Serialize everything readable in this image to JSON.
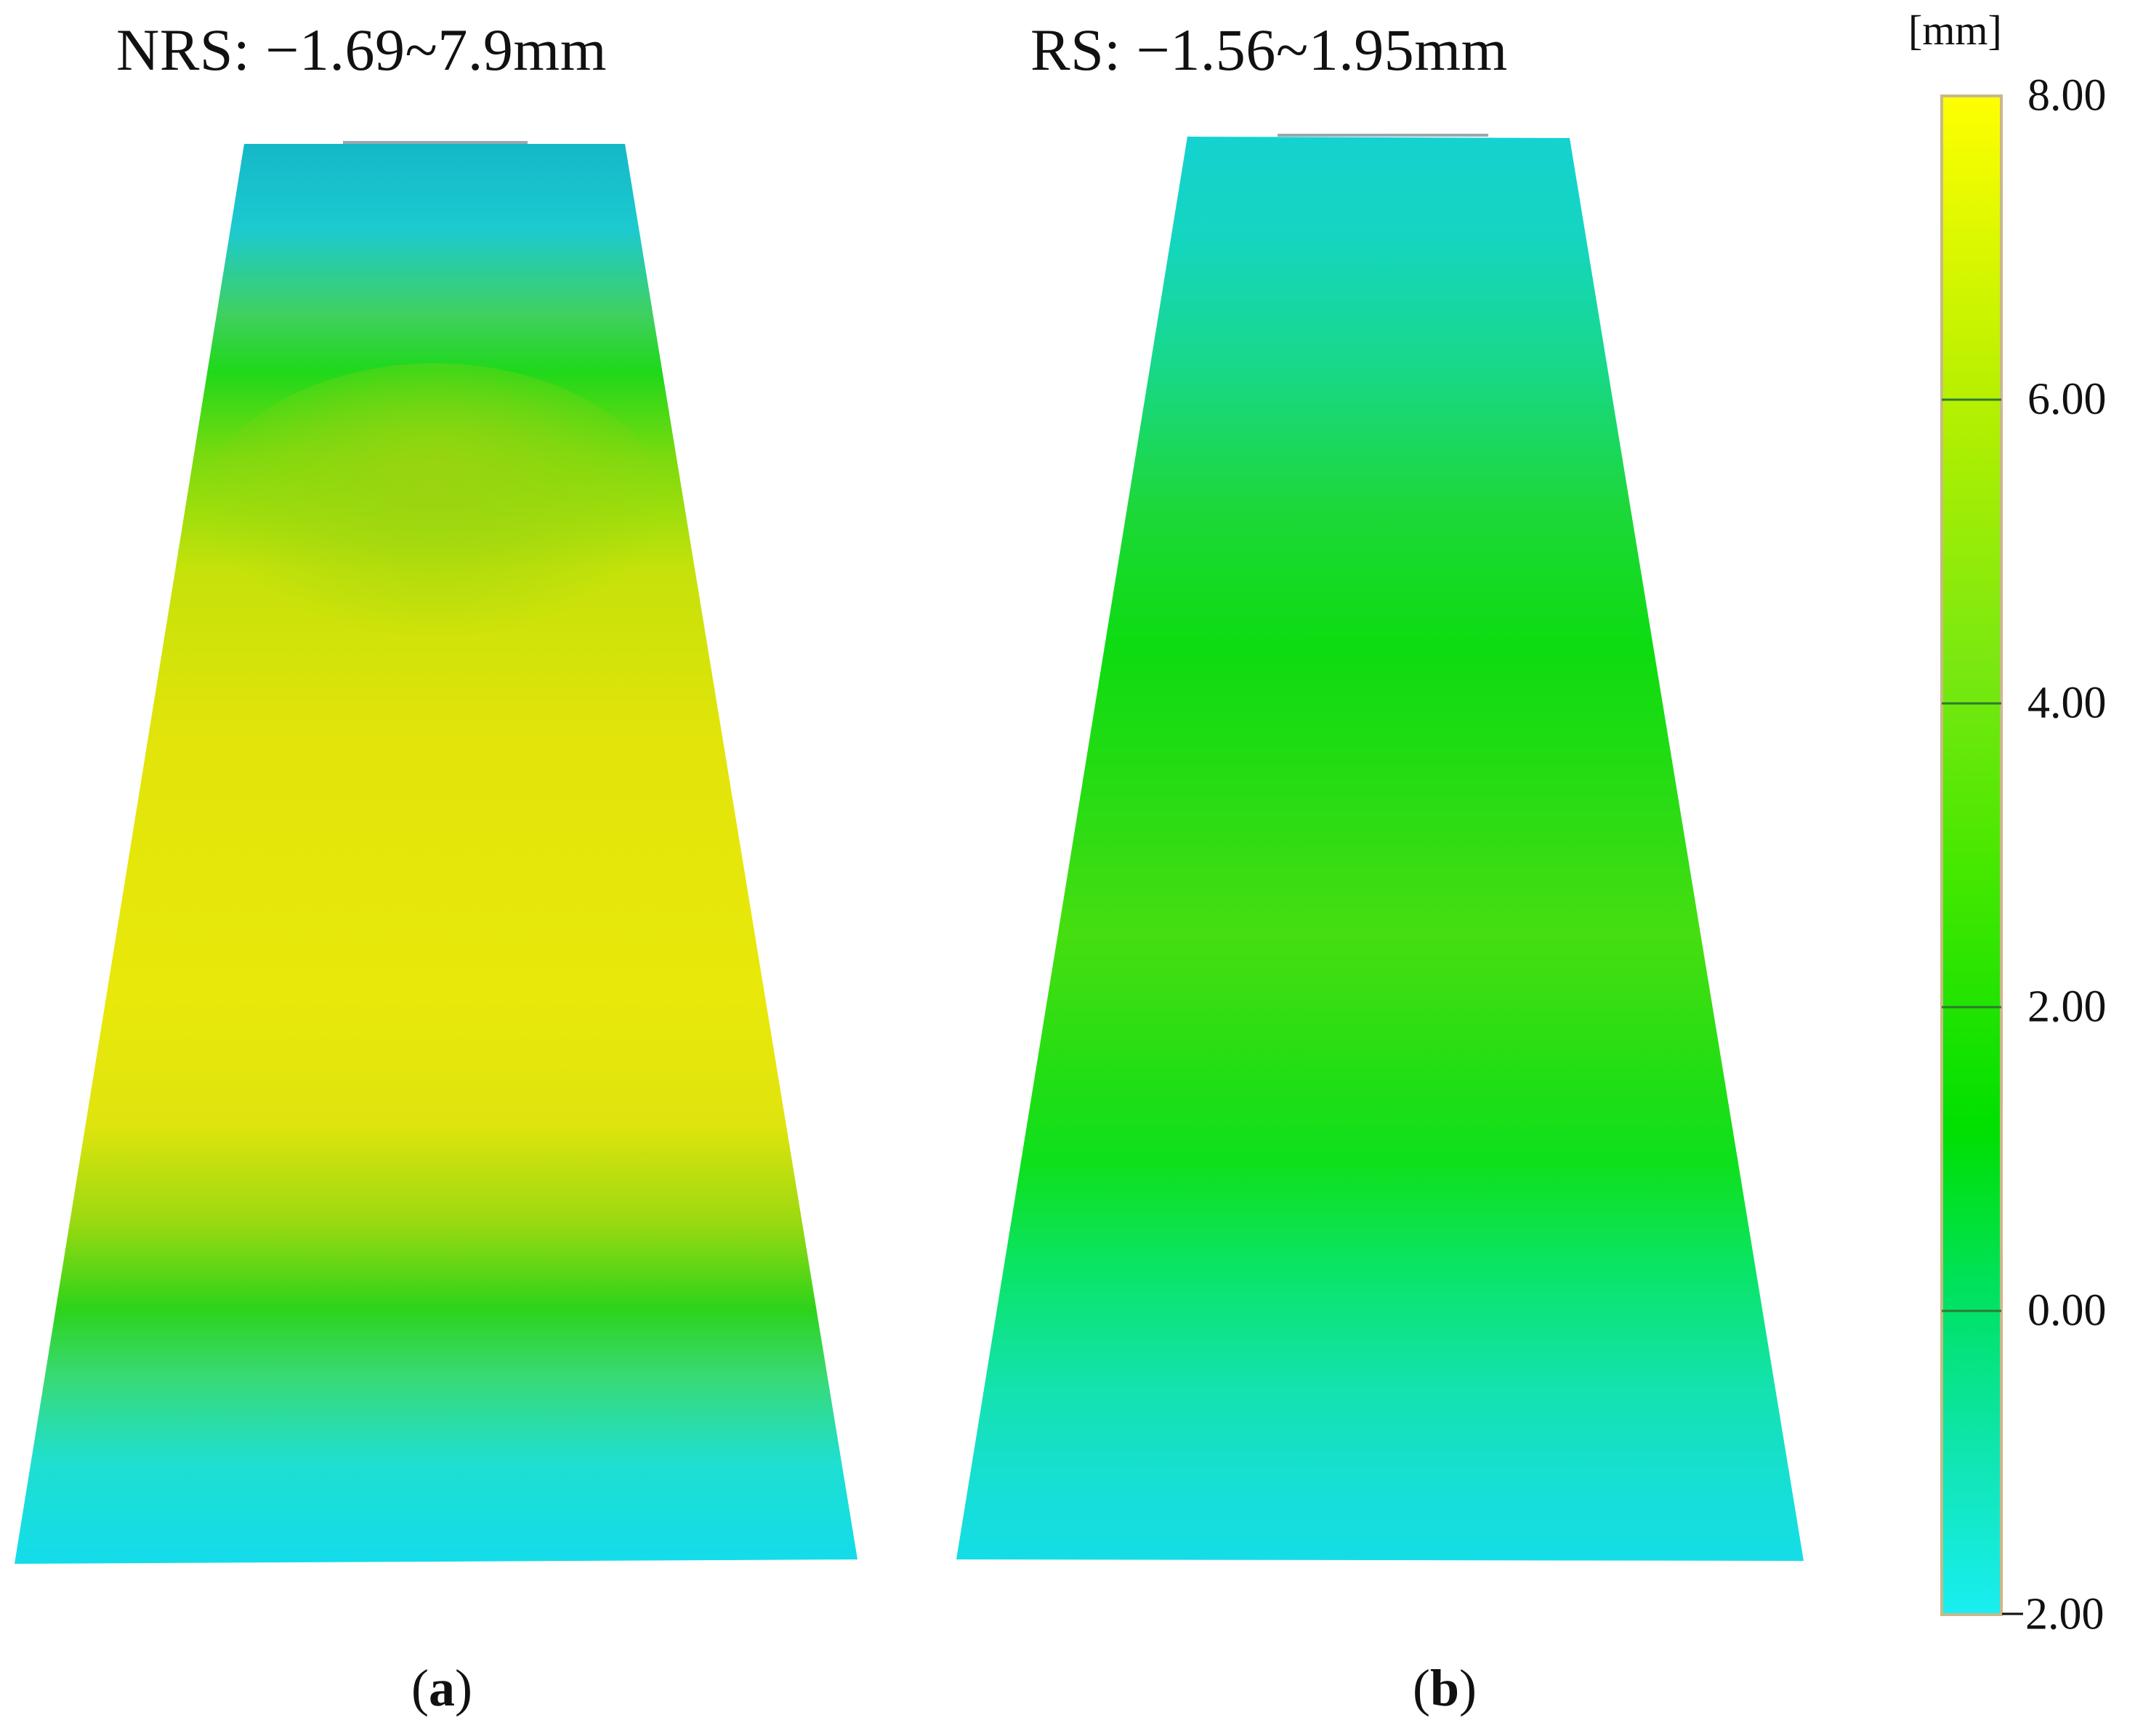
{
  "panels": [
    {
      "id": "a",
      "title": "NRS: −1.69~7.9mm",
      "label": "a",
      "range_min_mm": -1.69,
      "range_max_mm": 7.9
    },
    {
      "id": "b",
      "title": "RS: −1.56~1.95mm",
      "label": "b",
      "range_min_mm": -1.56,
      "range_max_mm": 1.95
    }
  ],
  "colorbar": {
    "unit": "[mm]",
    "min": -2.0,
    "max": 8.0,
    "ticks": [
      "8.00",
      "6.00",
      "4.00",
      "2.00",
      "0.00",
      "−2.00"
    ],
    "colors": {
      "min": "#19e6ee",
      "low": "#00e48c",
      "mid": "#00e000",
      "high": "#b8e800",
      "max": "#ffff00",
      "border": "#c9b98a",
      "tick": "#2f7a2f"
    }
  }
}
